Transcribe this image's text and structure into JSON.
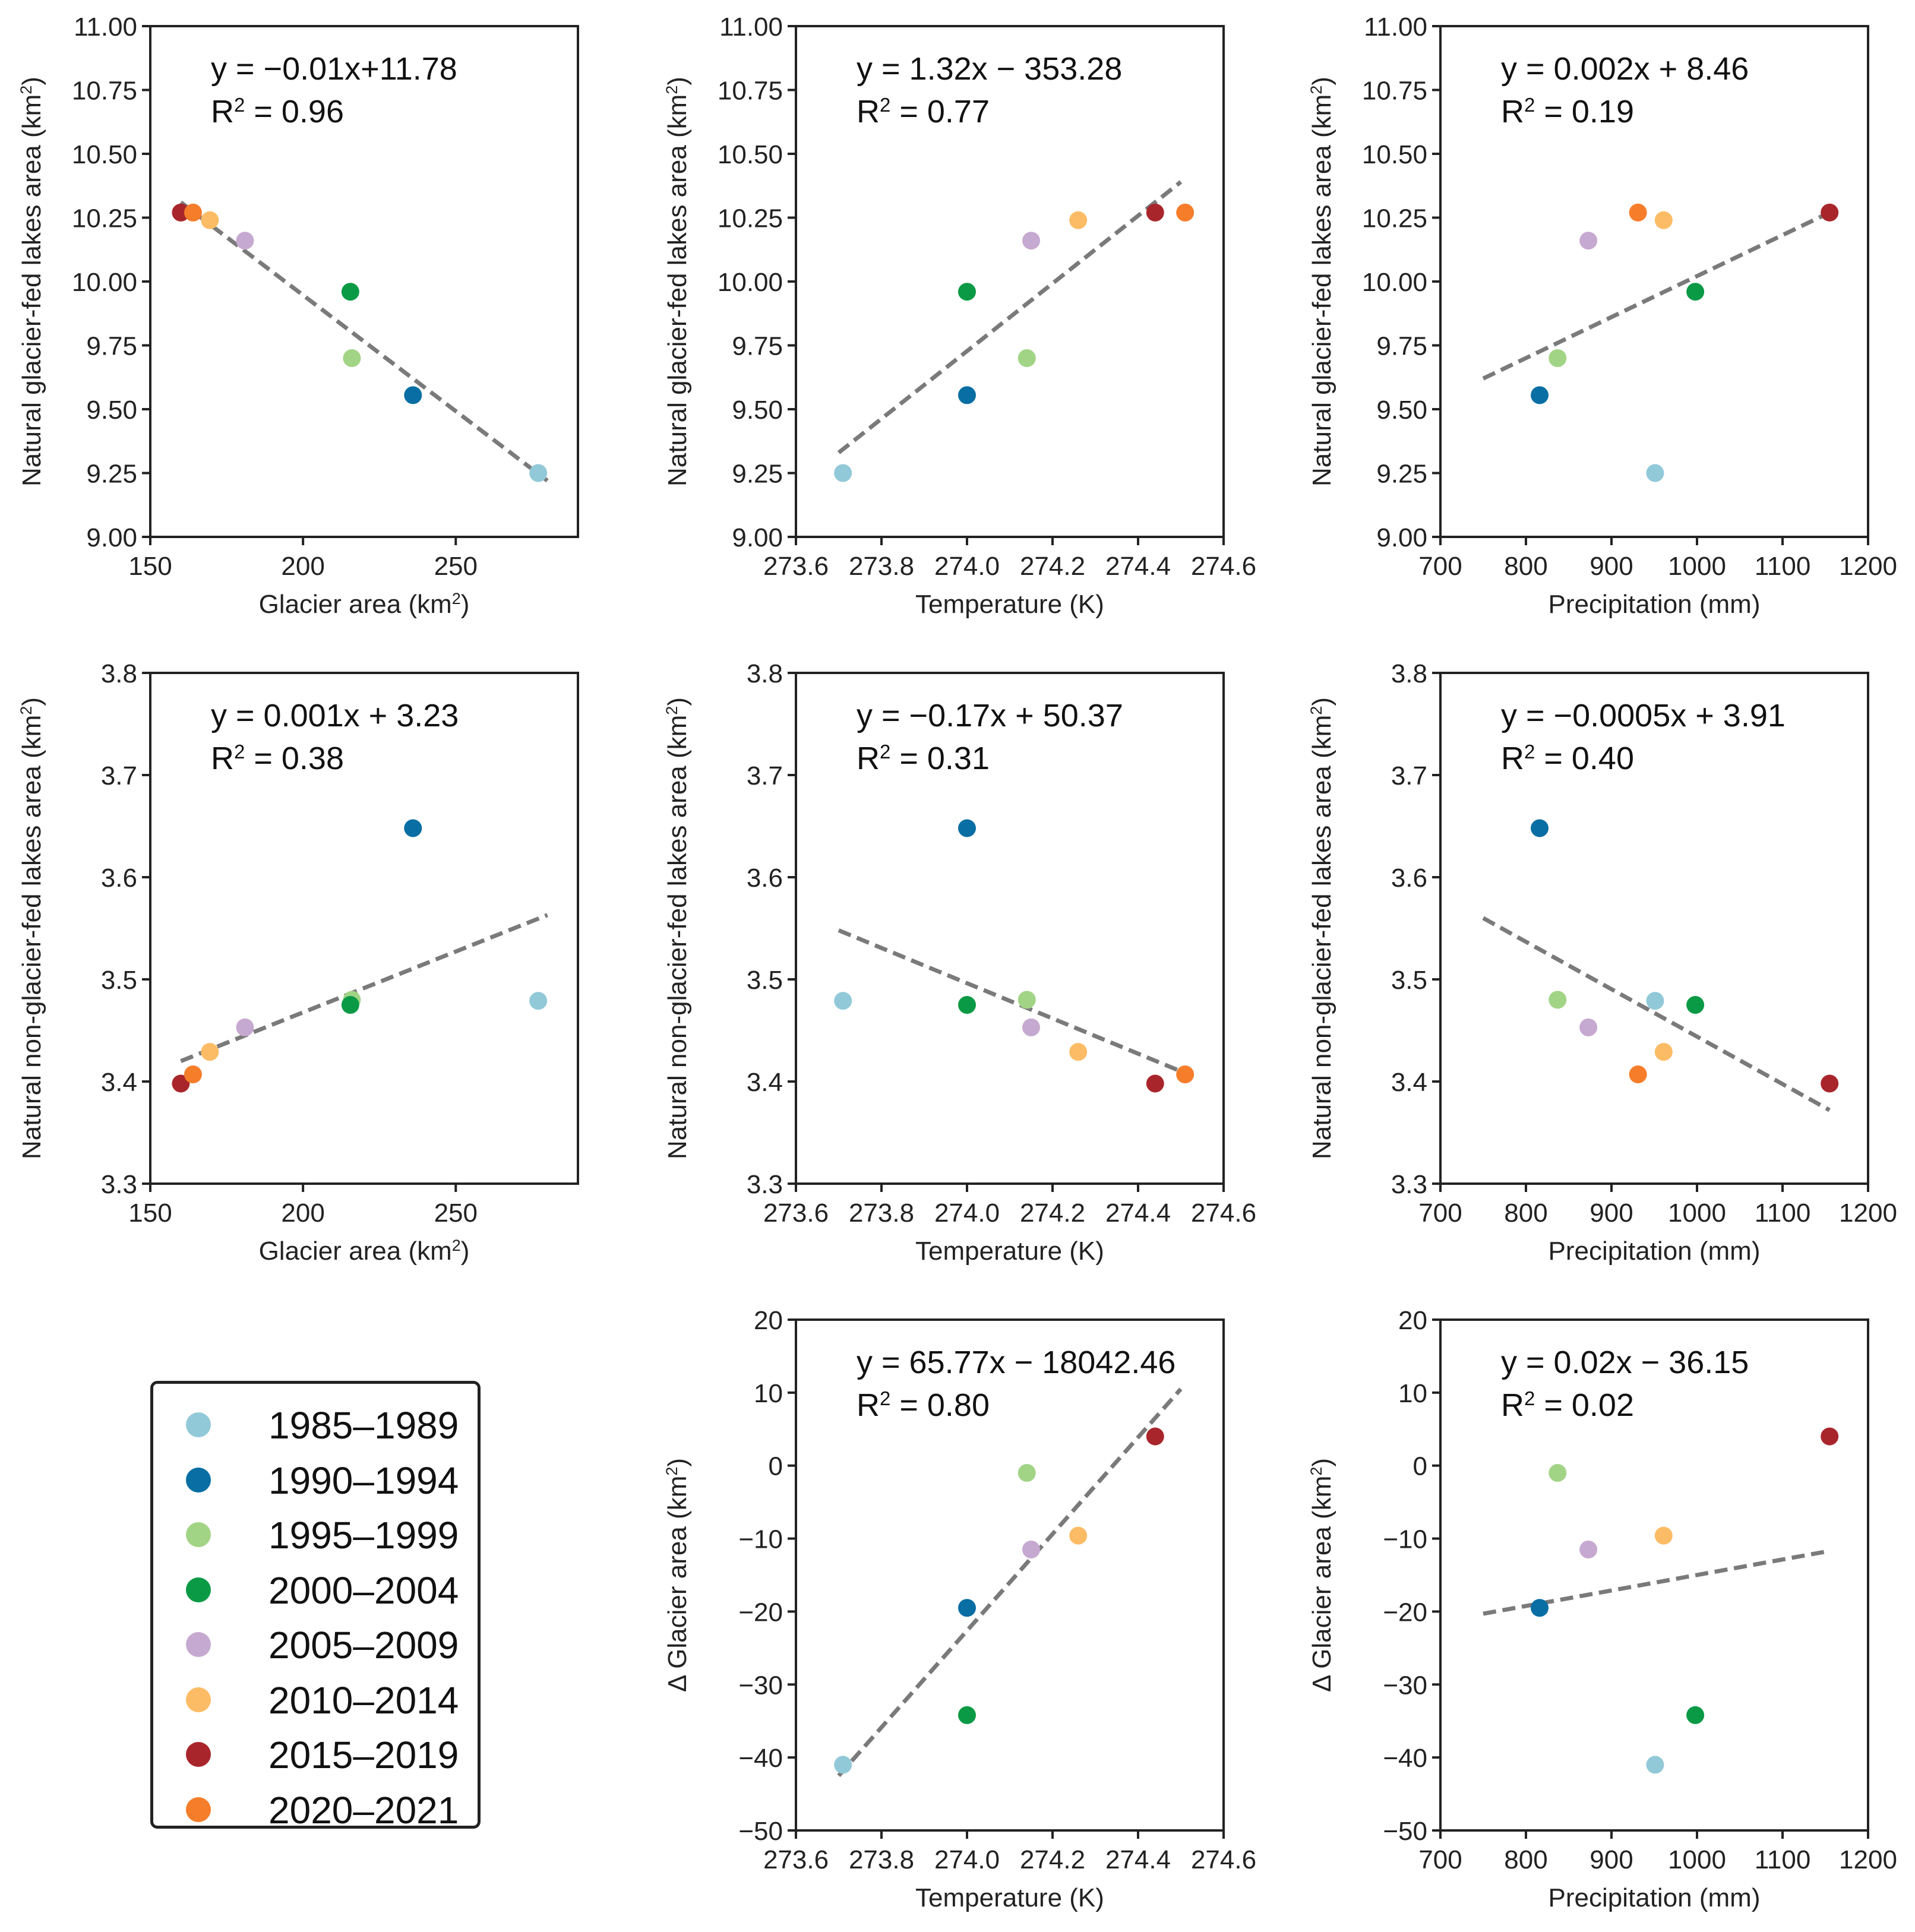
{
  "groups": [
    {
      "label": "1985–1989",
      "color": "#92c9d8"
    },
    {
      "label": "1990–1994",
      "color": "#086ea3"
    },
    {
      "label": "1995–1999",
      "color": "#a2d486"
    },
    {
      "label": "2000–2004",
      "color": "#0a9a45"
    },
    {
      "label": "2005–2009",
      "color": "#c6a9d0"
    },
    {
      "label": "2010–2014",
      "color": "#fcbc66"
    },
    {
      "label": "2015–2019",
      "color": "#a8262b"
    },
    {
      "label": "2020–2021",
      "color": "#f67d2a"
    }
  ],
  "chart_data": [
    {
      "id": "p11",
      "type": "scatter",
      "xlabel": "Glacier area (km²)",
      "ylabel": "Natural glacier-fed lakes area (km²)",
      "xlim": [
        150,
        290
      ],
      "ylim": [
        9.0,
        11.0
      ],
      "xticks": [
        150,
        200,
        250
      ],
      "xticklabels": [
        "150",
        "200",
        "250"
      ],
      "yticks": [
        9.0,
        9.25,
        9.5,
        9.75,
        10.0,
        10.25,
        10.5,
        10.75,
        11.0
      ],
      "yticklabels": [
        "9.00",
        "9.25",
        "9.50",
        "9.75",
        "10.00",
        "10.25",
        "10.50",
        "10.75",
        "11.00"
      ],
      "eq": "y = −0.01x+11.78",
      "r2": "R² = 0.96",
      "fit": [
        [
          160,
          10.31
        ],
        [
          280,
          9.22
        ]
      ],
      "points": [
        {
          "group": "1985–1989",
          "x": 277,
          "y": 9.25
        },
        {
          "group": "1990–1994",
          "x": 236,
          "y": 9.555
        },
        {
          "group": "1995–1999",
          "x": 216,
          "y": 9.7
        },
        {
          "group": "2000–2004",
          "x": 215.5,
          "y": 9.96
        },
        {
          "group": "2005–2009",
          "x": 181,
          "y": 10.16
        },
        {
          "group": "2010–2014",
          "x": 169.5,
          "y": 10.24
        },
        {
          "group": "2015–2019",
          "x": 160,
          "y": 10.27
        },
        {
          "group": "2020–2021",
          "x": 164,
          "y": 10.27
        }
      ]
    },
    {
      "id": "p12",
      "type": "scatter",
      "xlabel": "Temperature (K)",
      "ylabel": "Natural glacier-fed lakes area (km²)",
      "xlim": [
        273.6,
        274.6
      ],
      "ylim": [
        9.0,
        11.0
      ],
      "xticks": [
        273.6,
        273.8,
        274.0,
        274.2,
        274.4,
        274.6
      ],
      "xticklabels": [
        "273.6",
        "273.8",
        "274.0",
        "274.2",
        "274.4",
        "274.6"
      ],
      "yticks": [
        9.0,
        9.25,
        9.5,
        9.75,
        10.0,
        10.25,
        10.5,
        10.75,
        11.0
      ],
      "yticklabels": [
        "9.00",
        "9.25",
        "9.50",
        "9.75",
        "10.00",
        "10.25",
        "10.50",
        "10.75",
        "11.00"
      ],
      "eq": "y = 1.32x − 353.28",
      "r2": "R² = 0.77",
      "fit": [
        [
          273.7,
          9.33
        ],
        [
          274.5,
          10.39
        ]
      ],
      "points": [
        {
          "group": "1985–1989",
          "x": 273.71,
          "y": 9.25
        },
        {
          "group": "1990–1994",
          "x": 274.0,
          "y": 9.555
        },
        {
          "group": "1995–1999",
          "x": 274.14,
          "y": 9.7
        },
        {
          "group": "2000–2004",
          "x": 274.0,
          "y": 9.96
        },
        {
          "group": "2005–2009",
          "x": 274.15,
          "y": 10.16
        },
        {
          "group": "2010–2014",
          "x": 274.26,
          "y": 10.24
        },
        {
          "group": "2015–2019",
          "x": 274.44,
          "y": 10.27
        },
        {
          "group": "2020–2021",
          "x": 274.51,
          "y": 10.27
        }
      ]
    },
    {
      "id": "p13",
      "type": "scatter",
      "xlabel": "Precipitation (mm)",
      "ylabel": "Natural glacier-fed lakes area (km²)",
      "xlim": [
        700,
        1200
      ],
      "ylim": [
        9.0,
        11.0
      ],
      "xticks": [
        700,
        800,
        900,
        1000,
        1100,
        1200
      ],
      "xticklabels": [
        "700",
        "800",
        "900",
        "1000",
        "1100",
        "1200"
      ],
      "yticks": [
        9.0,
        9.25,
        9.5,
        9.75,
        10.0,
        10.25,
        10.5,
        10.75,
        11.0
      ],
      "yticklabels": [
        "9.00",
        "9.25",
        "9.50",
        "9.75",
        "10.00",
        "10.25",
        "10.50",
        "10.75",
        "11.00"
      ],
      "eq": "y = 0.002x + 8.46",
      "r2": "R² = 0.19",
      "fit": [
        [
          750,
          9.62
        ],
        [
          1155,
          10.27
        ]
      ],
      "points": [
        {
          "group": "1985–1989",
          "x": 951,
          "y": 9.25
        },
        {
          "group": "1990–1994",
          "x": 816,
          "y": 9.555
        },
        {
          "group": "1995–1999",
          "x": 837,
          "y": 9.7
        },
        {
          "group": "2000–2004",
          "x": 998,
          "y": 9.96
        },
        {
          "group": "2005–2009",
          "x": 873,
          "y": 10.16
        },
        {
          "group": "2010–2014",
          "x": 961,
          "y": 10.24
        },
        {
          "group": "2015–2019",
          "x": 1155,
          "y": 10.27
        },
        {
          "group": "2020–2021",
          "x": 931,
          "y": 10.27
        }
      ]
    },
    {
      "id": "p21",
      "type": "scatter",
      "xlabel": "Glacier area (km²)",
      "ylabel": "Natural non-glacier-fed lakes area (km²)",
      "xlim": [
        150,
        290
      ],
      "ylim": [
        3.3,
        3.8
      ],
      "xticks": [
        150,
        200,
        250
      ],
      "xticklabels": [
        "150",
        "200",
        "250"
      ],
      "yticks": [
        3.3,
        3.4,
        3.5,
        3.6,
        3.7,
        3.8
      ],
      "yticklabels": [
        "3.3",
        "3.4",
        "3.5",
        "3.6",
        "3.7",
        "3.8"
      ],
      "eq": "y = 0.001x + 3.23",
      "r2": "R² = 0.38",
      "fit": [
        [
          160,
          3.42
        ],
        [
          280,
          3.563
        ]
      ],
      "points": [
        {
          "group": "1985–1989",
          "x": 277,
          "y": 3.479
        },
        {
          "group": "1990–1994",
          "x": 236,
          "y": 3.648
        },
        {
          "group": "1995–1999",
          "x": 216,
          "y": 3.48
        },
        {
          "group": "2000–2004",
          "x": 215.5,
          "y": 3.475
        },
        {
          "group": "2005–2009",
          "x": 181,
          "y": 3.453
        },
        {
          "group": "2010–2014",
          "x": 169.5,
          "y": 3.429
        },
        {
          "group": "2015–2019",
          "x": 160,
          "y": 3.398
        },
        {
          "group": "2020–2021",
          "x": 164,
          "y": 3.407
        }
      ]
    },
    {
      "id": "p22",
      "type": "scatter",
      "xlabel": "Temperature (K)",
      "ylabel": "Natural non-glacier-fed lakes area (km²)",
      "xlim": [
        273.6,
        274.6
      ],
      "ylim": [
        3.3,
        3.8
      ],
      "xticks": [
        273.6,
        273.8,
        274.0,
        274.2,
        274.4,
        274.6
      ],
      "xticklabels": [
        "273.6",
        "273.8",
        "274.0",
        "274.2",
        "274.4",
        "274.6"
      ],
      "yticks": [
        3.3,
        3.4,
        3.5,
        3.6,
        3.7,
        3.8
      ],
      "yticklabels": [
        "3.3",
        "3.4",
        "3.5",
        "3.6",
        "3.7",
        "3.8"
      ],
      "eq": "y = −0.17x + 50.37",
      "r2": "R² = 0.31",
      "fit": [
        [
          273.7,
          3.548
        ],
        [
          274.5,
          3.41
        ]
      ],
      "points": [
        {
          "group": "1985–1989",
          "x": 273.71,
          "y": 3.479
        },
        {
          "group": "1990–1994",
          "x": 274.0,
          "y": 3.648
        },
        {
          "group": "1995–1999",
          "x": 274.14,
          "y": 3.48
        },
        {
          "group": "2000–2004",
          "x": 274.0,
          "y": 3.475
        },
        {
          "group": "2005–2009",
          "x": 274.15,
          "y": 3.453
        },
        {
          "group": "2010–2014",
          "x": 274.26,
          "y": 3.429
        },
        {
          "group": "2015–2019",
          "x": 274.44,
          "y": 3.398
        },
        {
          "group": "2020–2021",
          "x": 274.51,
          "y": 3.407
        }
      ]
    },
    {
      "id": "p23",
      "type": "scatter",
      "xlabel": "Precipitation (mm)",
      "ylabel": "Natural non-glacier-fed lakes area (km²)",
      "xlim": [
        700,
        1200
      ],
      "ylim": [
        3.3,
        3.8
      ],
      "xticks": [
        700,
        800,
        900,
        1000,
        1100,
        1200
      ],
      "xticklabels": [
        "700",
        "800",
        "900",
        "1000",
        "1100",
        "1200"
      ],
      "yticks": [
        3.3,
        3.4,
        3.5,
        3.6,
        3.7,
        3.8
      ],
      "yticklabels": [
        "3.3",
        "3.4",
        "3.5",
        "3.6",
        "3.7",
        "3.8"
      ],
      "eq": "y = −0.0005x + 3.91",
      "r2": "R² = 0.40",
      "fit": [
        [
          750,
          3.56
        ],
        [
          1155,
          3.372
        ]
      ],
      "points": [
        {
          "group": "1985–1989",
          "x": 951,
          "y": 3.479
        },
        {
          "group": "1990–1994",
          "x": 816,
          "y": 3.648
        },
        {
          "group": "1995–1999",
          "x": 837,
          "y": 3.48
        },
        {
          "group": "2000–2004",
          "x": 998,
          "y": 3.475
        },
        {
          "group": "2005–2009",
          "x": 873,
          "y": 3.453
        },
        {
          "group": "2010–2014",
          "x": 961,
          "y": 3.429
        },
        {
          "group": "2015–2019",
          "x": 1155,
          "y": 3.398
        },
        {
          "group": "2020–2021",
          "x": 931,
          "y": 3.407
        }
      ]
    },
    {
      "id": "p32",
      "type": "scatter",
      "xlabel": "Temperature (K)",
      "ylabel": "Δ Glacier area (km²)",
      "xlim": [
        273.6,
        274.6
      ],
      "ylim": [
        -50,
        20
      ],
      "xticks": [
        273.6,
        273.8,
        274.0,
        274.2,
        274.4,
        274.6
      ],
      "xticklabels": [
        "273.6",
        "273.8",
        "274.0",
        "274.2",
        "274.4",
        "274.6"
      ],
      "yticks": [
        -50,
        -40,
        -30,
        -20,
        -10,
        0,
        10,
        20
      ],
      "yticklabels": [
        "−50",
        "−40",
        "−30",
        "−20",
        "−10",
        "0",
        "10",
        "20"
      ],
      "eq": "y = 65.77x − 18042.46",
      "r2": "R² = 0.80",
      "fit": [
        [
          273.7,
          -42.5
        ],
        [
          274.5,
          10.5
        ]
      ],
      "points": [
        {
          "group": "1985–1989",
          "x": 273.71,
          "y": -41.0
        },
        {
          "group": "1990–1994",
          "x": 274.0,
          "y": -19.5
        },
        {
          "group": "1995–1999",
          "x": 274.14,
          "y": -1.0
        },
        {
          "group": "2000–2004",
          "x": 274.0,
          "y": -34.2
        },
        {
          "group": "2005–2009",
          "x": 274.15,
          "y": -11.5
        },
        {
          "group": "2010–2014",
          "x": 274.26,
          "y": -9.6
        },
        {
          "group": "2015–2019",
          "x": 274.44,
          "y": 4.0
        }
      ]
    },
    {
      "id": "p33",
      "type": "scatter",
      "xlabel": "Precipitation (mm)",
      "ylabel": "Δ Glacier area (km²)",
      "xlim": [
        700,
        1200
      ],
      "ylim": [
        -50,
        20
      ],
      "xticks": [
        700,
        800,
        900,
        1000,
        1100,
        1200
      ],
      "xticklabels": [
        "700",
        "800",
        "900",
        "1000",
        "1100",
        "1200"
      ],
      "yticks": [
        -50,
        -40,
        -30,
        -20,
        -10,
        0,
        10,
        20
      ],
      "yticklabels": [
        "−50",
        "−40",
        "−30",
        "−20",
        "−10",
        "0",
        "10",
        "20"
      ],
      "eq": "y = 0.02x − 36.15",
      "r2": "R² = 0.02",
      "fit": [
        [
          750,
          -20.3
        ],
        [
          1155,
          -11.7
        ]
      ],
      "points": [
        {
          "group": "1985–1989",
          "x": 951,
          "y": -41.0
        },
        {
          "group": "1990–1994",
          "x": 816,
          "y": -19.5
        },
        {
          "group": "1995–1999",
          "x": 837,
          "y": -1.0
        },
        {
          "group": "2000–2004",
          "x": 998,
          "y": -34.2
        },
        {
          "group": "2005–2009",
          "x": 873,
          "y": -11.5
        },
        {
          "group": "2010–2014",
          "x": 961,
          "y": -9.6
        },
        {
          "group": "2015–2019",
          "x": 1155,
          "y": 4.0
        }
      ]
    }
  ]
}
